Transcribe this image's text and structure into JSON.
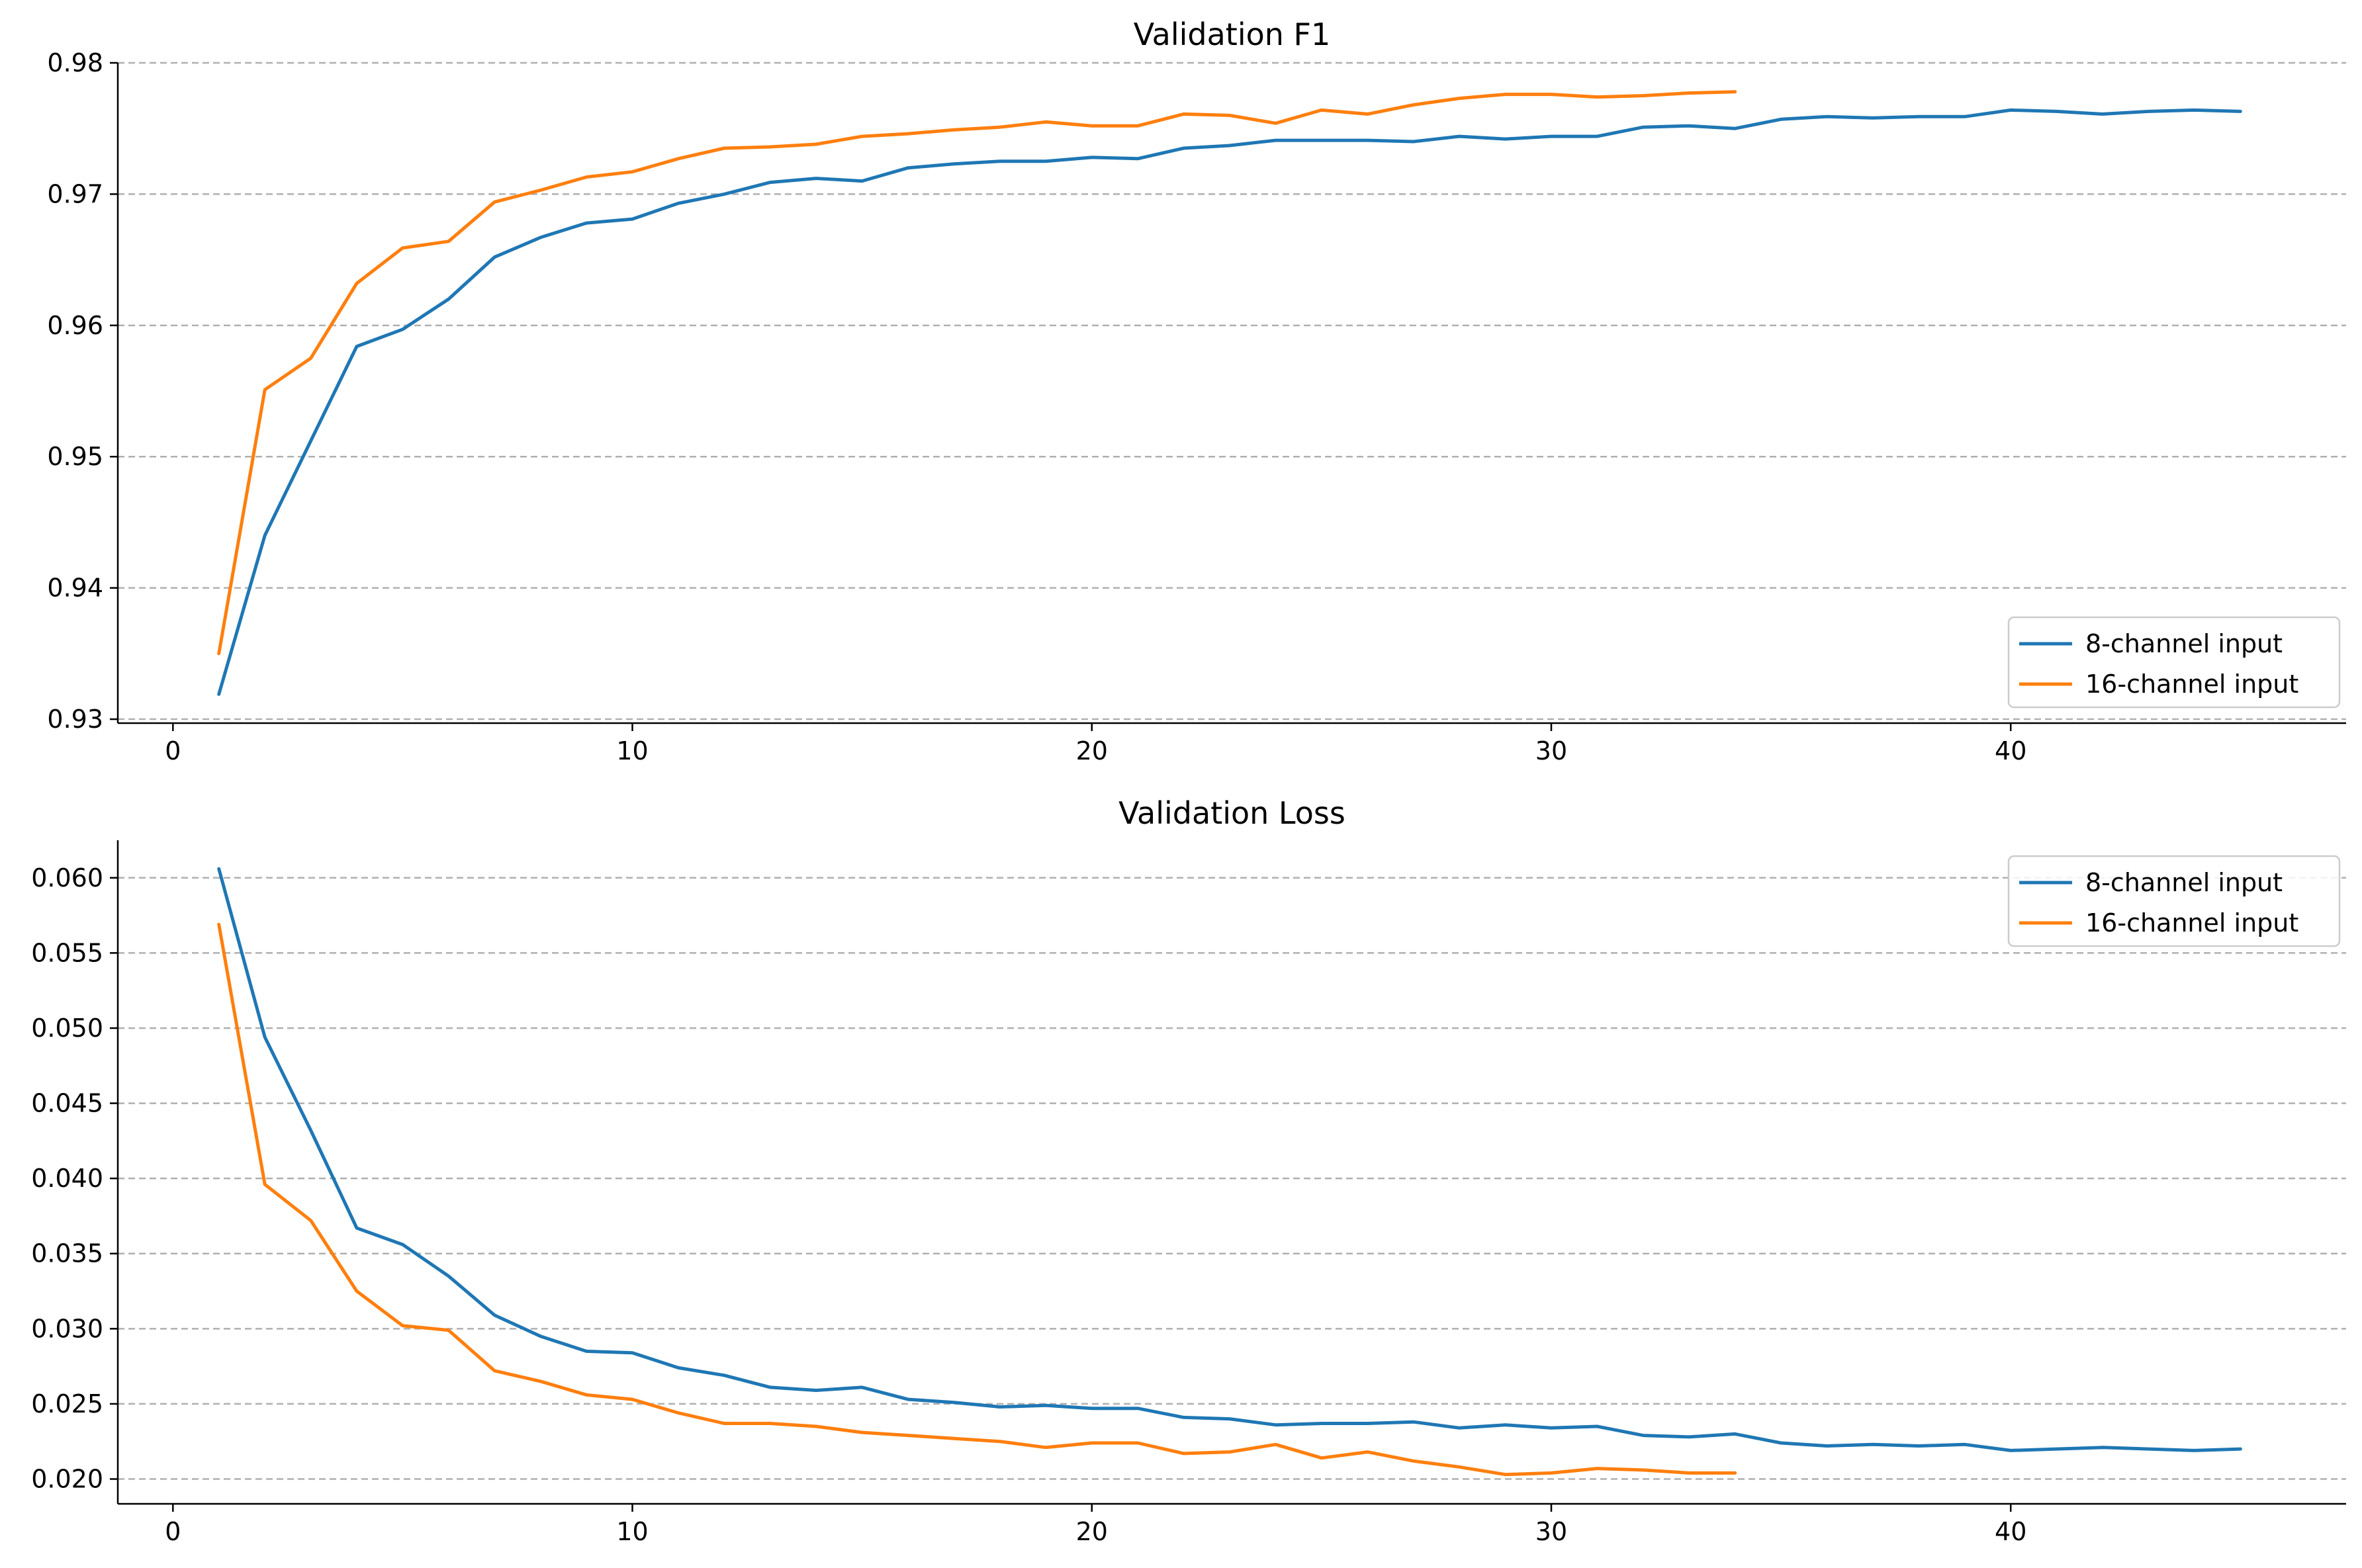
{
  "colors": {
    "series_1": "#1f77b4",
    "series_2": "#ff7f0e"
  },
  "chart_data": [
    {
      "type": "line",
      "title": "Validation F1",
      "xlabel": "",
      "ylabel": "",
      "xlim": [
        -1.2,
        47.3
      ],
      "ylim": [
        0.9297,
        0.98
      ],
      "xticks": [
        0,
        10,
        20,
        30,
        40
      ],
      "xtick_labels": [
        "0",
        "10",
        "20",
        "30",
        "40"
      ],
      "yticks": [
        0.93,
        0.94,
        0.95,
        0.96,
        0.97,
        0.98
      ],
      "ytick_labels": [
        "0.93",
        "0.94",
        "0.95",
        "0.96",
        "0.97",
        "0.98"
      ],
      "grid": "horizontal dashed",
      "legend_position": "lower right",
      "series": [
        {
          "name": "8-channel input",
          "x": [
            1,
            2,
            3,
            4,
            5,
            6,
            7,
            8,
            9,
            10,
            11,
            12,
            13,
            14,
            15,
            16,
            17,
            18,
            19,
            20,
            21,
            22,
            23,
            24,
            25,
            26,
            27,
            28,
            29,
            30,
            31,
            32,
            33,
            34,
            35,
            36,
            37,
            38,
            39,
            40,
            41,
            42,
            43,
            44,
            45
          ],
          "values": [
            0.9319,
            0.944,
            0.9512,
            0.9584,
            0.9597,
            0.962,
            0.9652,
            0.9667,
            0.9678,
            0.9681,
            0.9693,
            0.97,
            0.9709,
            0.9712,
            0.971,
            0.972,
            0.9723,
            0.9725,
            0.9725,
            0.9728,
            0.9727,
            0.9735,
            0.9737,
            0.9741,
            0.9741,
            0.9741,
            0.974,
            0.9744,
            0.9742,
            0.9744,
            0.9744,
            0.9751,
            0.9752,
            0.975,
            0.9757,
            0.9759,
            0.9758,
            0.9759,
            0.9759,
            0.9764,
            0.9763,
            0.9761,
            0.9763,
            0.9764,
            0.9763
          ]
        },
        {
          "name": "16-channel input",
          "x": [
            1,
            2,
            3,
            4,
            5,
            6,
            7,
            8,
            9,
            10,
            11,
            12,
            13,
            14,
            15,
            16,
            17,
            18,
            19,
            20,
            21,
            22,
            23,
            24,
            25,
            26,
            27,
            28,
            29,
            30,
            31,
            32,
            33,
            34
          ],
          "values": [
            0.935,
            0.9551,
            0.9575,
            0.9632,
            0.9659,
            0.9664,
            0.9694,
            0.9703,
            0.9713,
            0.9717,
            0.9727,
            0.9735,
            0.9736,
            0.9738,
            0.9744,
            0.9746,
            0.9749,
            0.9751,
            0.9755,
            0.9752,
            0.9752,
            0.9761,
            0.976,
            0.9754,
            0.9764,
            0.9761,
            0.9768,
            0.9773,
            0.9776,
            0.9776,
            0.9774,
            0.9775,
            0.9777,
            0.9778
          ]
        }
      ]
    },
    {
      "type": "line",
      "title": "Validation Loss",
      "xlabel": "",
      "ylabel": "",
      "xlim": [
        -1.2,
        47.3
      ],
      "ylim": [
        0.01835,
        0.0625
      ],
      "xticks": [
        0,
        10,
        20,
        30,
        40
      ],
      "xtick_labels": [
        "0",
        "10",
        "20",
        "30",
        "40"
      ],
      "yticks": [
        0.02,
        0.025,
        0.03,
        0.035,
        0.04,
        0.045,
        0.05,
        0.055,
        0.06
      ],
      "ytick_labels": [
        "0.020",
        "0.025",
        "0.030",
        "0.035",
        "0.040",
        "0.045",
        "0.050",
        "0.055",
        "0.060"
      ],
      "grid": "horizontal dashed",
      "legend_position": "upper right",
      "series": [
        {
          "name": "8-channel input",
          "x": [
            1,
            2,
            3,
            4,
            5,
            6,
            7,
            8,
            9,
            10,
            11,
            12,
            13,
            14,
            15,
            16,
            17,
            18,
            19,
            20,
            21,
            22,
            23,
            24,
            25,
            26,
            27,
            28,
            29,
            30,
            31,
            32,
            33,
            34,
            35,
            36,
            37,
            38,
            39,
            40,
            41,
            42,
            43,
            44,
            45
          ],
          "values": [
            0.0606,
            0.0494,
            0.0432,
            0.0367,
            0.0356,
            0.0335,
            0.0309,
            0.0295,
            0.0285,
            0.0284,
            0.0274,
            0.0269,
            0.0261,
            0.0259,
            0.0261,
            0.0253,
            0.0251,
            0.0248,
            0.0249,
            0.0247,
            0.0247,
            0.0241,
            0.024,
            0.0236,
            0.0237,
            0.0237,
            0.0238,
            0.0234,
            0.0236,
            0.0234,
            0.0235,
            0.0229,
            0.0228,
            0.023,
            0.0224,
            0.0222,
            0.0223,
            0.0222,
            0.0223,
            0.0219,
            0.022,
            0.0221,
            0.022,
            0.0219,
            0.022
          ]
        },
        {
          "name": "16-channel input",
          "x": [
            1,
            2,
            3,
            4,
            5,
            6,
            7,
            8,
            9,
            10,
            11,
            12,
            13,
            14,
            15,
            16,
            17,
            18,
            19,
            20,
            21,
            22,
            23,
            24,
            25,
            26,
            27,
            28,
            29,
            30,
            31,
            32,
            33,
            34
          ],
          "values": [
            0.0569,
            0.0396,
            0.0372,
            0.0325,
            0.0302,
            0.0299,
            0.0272,
            0.0265,
            0.0256,
            0.0253,
            0.0244,
            0.0237,
            0.0237,
            0.0235,
            0.0231,
            0.0229,
            0.0227,
            0.0225,
            0.0221,
            0.0224,
            0.0224,
            0.0217,
            0.0218,
            0.0223,
            0.0214,
            0.0218,
            0.0212,
            0.0208,
            0.0203,
            0.0204,
            0.0207,
            0.0206,
            0.0204,
            0.0204
          ]
        }
      ]
    }
  ]
}
